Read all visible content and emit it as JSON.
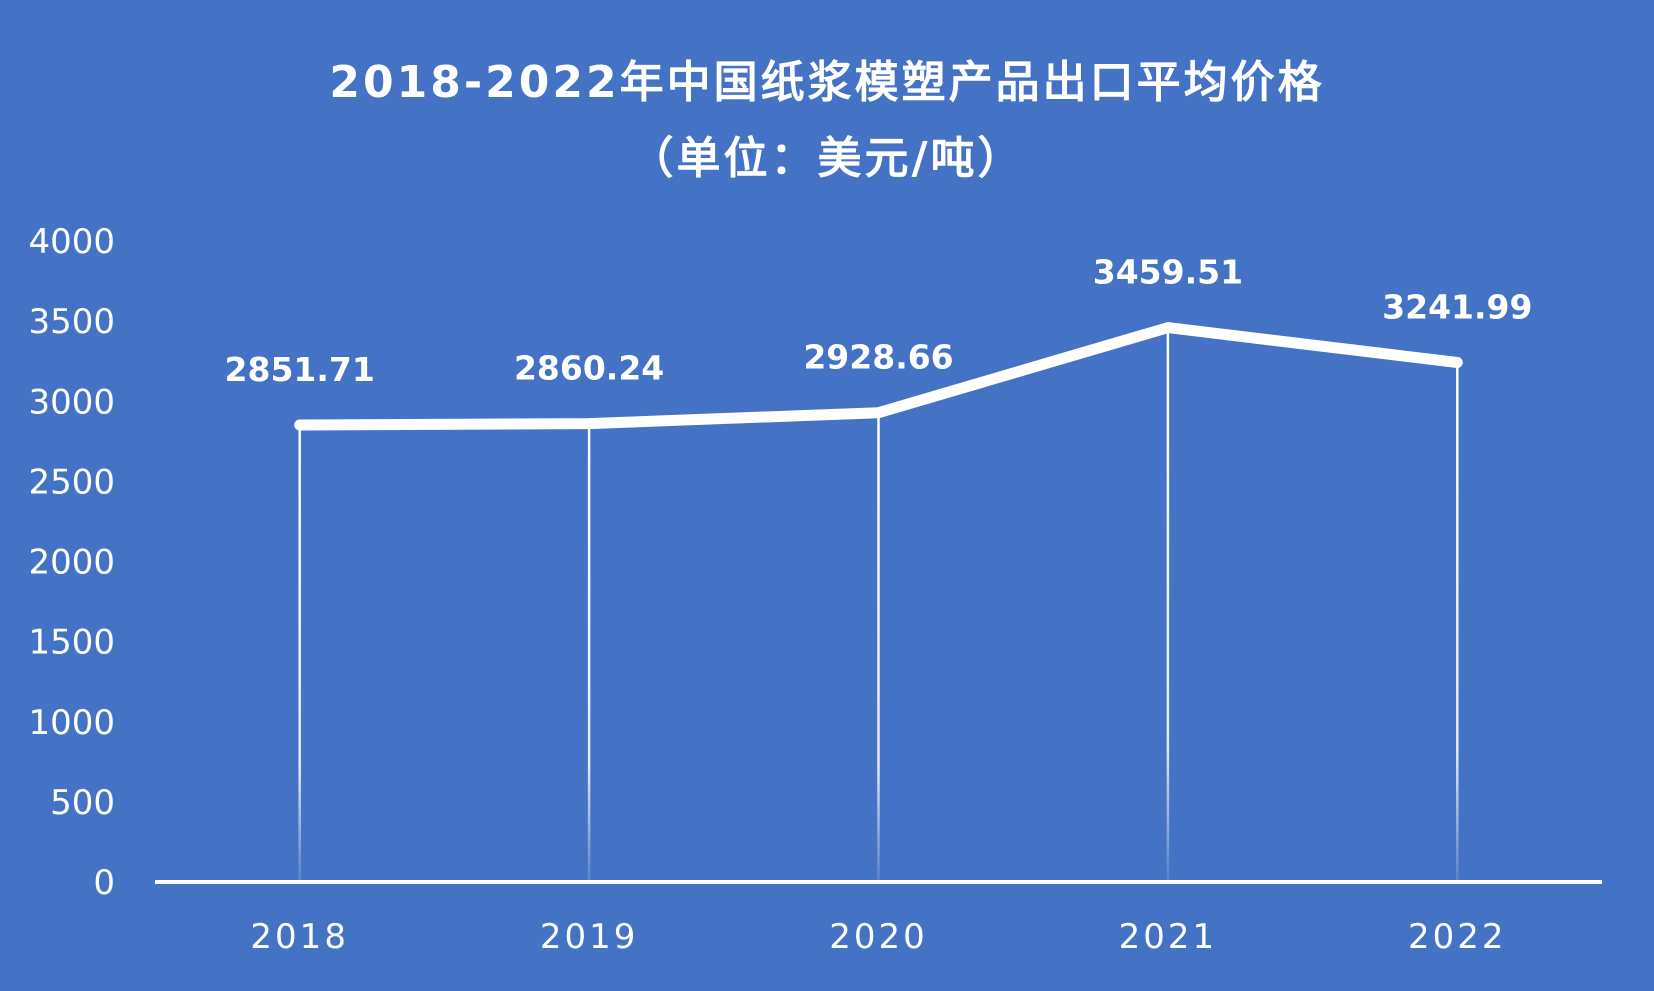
{
  "chart_data": {
    "type": "line",
    "title": "2018-2022年中国纸浆模塑产品出口平均价格",
    "subtitle": "（单位：美元/吨）",
    "categories": [
      "2018",
      "2019",
      "2020",
      "2021",
      "2022"
    ],
    "series": [
      {
        "values": [
          2851.71,
          2860.24,
          2928.66,
          3459.51,
          3241.99
        ],
        "data_labels": [
          "2851.71",
          "2860.24",
          "2928.66",
          "3459.51",
          "3241.99"
        ]
      }
    ],
    "ylim": [
      0,
      4000
    ],
    "yticks": [
      "0",
      "500",
      "1000",
      "1500",
      "2000",
      "2500",
      "3000",
      "3500",
      "4000"
    ],
    "xlabel": "",
    "ylabel": "",
    "grid": false,
    "drop_lines": true,
    "colors": {
      "background": "#4472C4",
      "line": "#FFFFFF",
      "text": "#FFFFFF"
    }
  }
}
